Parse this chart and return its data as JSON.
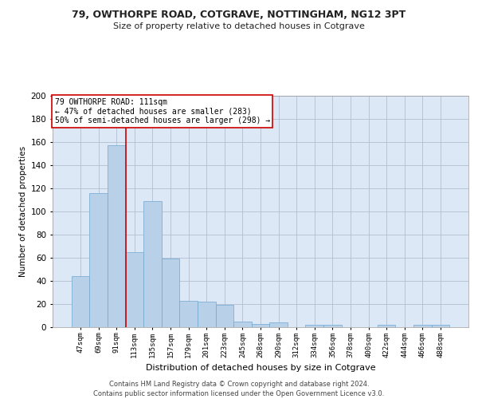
{
  "title1": "79, OWTHORPE ROAD, COTGRAVE, NOTTINGHAM, NG12 3PT",
  "title2": "Size of property relative to detached houses in Cotgrave",
  "xlabel": "Distribution of detached houses by size in Cotgrave",
  "ylabel": "Number of detached properties",
  "bar_color": "#b8d0e8",
  "bar_edge_color": "#6fa8d0",
  "background_color": "#ffffff",
  "plot_bg_color": "#dce8f5",
  "grid_color": "#b0bfd0",
  "categories": [
    "47sqm",
    "69sqm",
    "91sqm",
    "113sqm",
    "135sqm",
    "157sqm",
    "179sqm",
    "201sqm",
    "223sqm",
    "245sqm",
    "268sqm",
    "290sqm",
    "312sqm",
    "334sqm",
    "356sqm",
    "378sqm",
    "400sqm",
    "422sqm",
    "444sqm",
    "466sqm",
    "488sqm"
  ],
  "values": [
    44,
    116,
    157,
    65,
    109,
    59,
    23,
    22,
    19,
    5,
    3,
    4,
    0,
    2,
    2,
    0,
    0,
    2,
    0,
    2,
    2
  ],
  "property_line_color": "#cc0000",
  "annotation_text": "79 OWTHORPE ROAD: 111sqm\n← 47% of detached houses are smaller (283)\n50% of semi-detached houses are larger (298) →",
  "annotation_box_color": "#cc0000",
  "ylim": [
    0,
    200
  ],
  "yticks": [
    0,
    20,
    40,
    60,
    80,
    100,
    120,
    140,
    160,
    180,
    200
  ],
  "footer1": "Contains HM Land Registry data © Crown copyright and database right 2024.",
  "footer2": "Contains public sector information licensed under the Open Government Licence v3.0."
}
